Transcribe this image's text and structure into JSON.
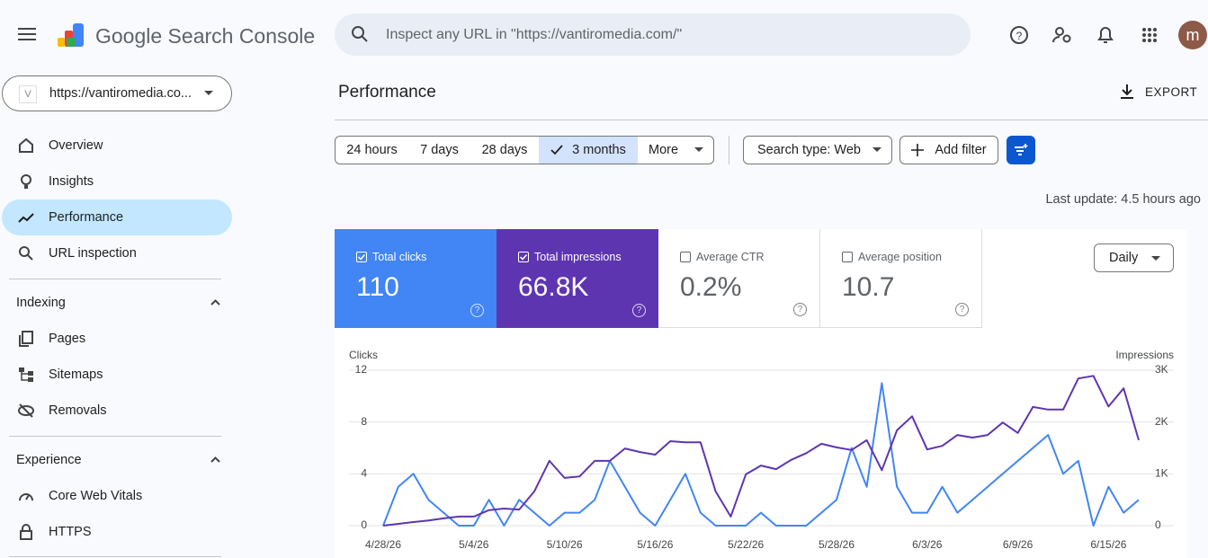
{
  "header": {
    "product": "Google Search Console",
    "search_placeholder": "Inspect any URL in \"https://vantiromedia.com/\"",
    "avatar": "m"
  },
  "property": "https://vantiromedia.co...",
  "nav": {
    "items": [
      "Overview",
      "Insights",
      "Performance",
      "URL inspection"
    ],
    "sections": [
      {
        "title": "Indexing",
        "items": [
          "Pages",
          "Sitemaps",
          "Removals"
        ]
      },
      {
        "title": "Experience",
        "items": [
          "Core Web Vitals",
          "HTTPS"
        ]
      }
    ]
  },
  "page": {
    "title": "Performance",
    "export": "EXPORT",
    "date_ranges": [
      "24 hours",
      "7 days",
      "28 days",
      "3 months"
    ],
    "more": "More",
    "search_type": "Search type: Web",
    "add_filter": "Add filter",
    "last_update": "Last update: 4.5 hours ago",
    "granularity": "Daily"
  },
  "metrics": [
    {
      "label": "Total clicks",
      "value": "110",
      "color": "#4285f4",
      "checked": true
    },
    {
      "label": "Total impressions",
      "value": "66.8K",
      "color": "#5e35b1",
      "checked": true
    },
    {
      "label": "Average CTR",
      "value": "0.2%",
      "checked": false
    },
    {
      "label": "Average position",
      "value": "10.7",
      "checked": false
    }
  ],
  "chart_data": {
    "type": "line",
    "y_label": "Clicks",
    "y2_label": "Impressions",
    "categories": [
      "4/28/26",
      null,
      null,
      null,
      null,
      null,
      "5/4/26",
      null,
      null,
      null,
      null,
      null,
      "5/10/26",
      null,
      null,
      null,
      null,
      null,
      "5/16/26",
      null,
      null,
      null,
      null,
      null,
      "5/22/26",
      null,
      null,
      null,
      null,
      null,
      "5/28/26",
      null,
      null,
      null,
      null,
      null,
      "6/3/26",
      null,
      null,
      null,
      null,
      null,
      "6/9/26",
      null,
      null,
      null,
      null,
      null,
      "6/15/26",
      null,
      null
    ],
    "series": [
      {
        "color": "#4285f4",
        "values": [
          0,
          3,
          4,
          2,
          1,
          0,
          0,
          2,
          0,
          2,
          1,
          0,
          1,
          1,
          2,
          5,
          3,
          1,
          0,
          2,
          4,
          1,
          0,
          0,
          0,
          1,
          0,
          0,
          0,
          1,
          2,
          6,
          3,
          11,
          3,
          1,
          1,
          3,
          1,
          2,
          3,
          4,
          5,
          6,
          7,
          4,
          5,
          0,
          3,
          1,
          2
        ]
      },
      {
        "color": "#5e35b1",
        "axis": "y2",
        "values": [
          0,
          35,
          70,
          100,
          140,
          175,
          175,
          300,
          330,
          310,
          660,
          1250,
          920,
          950,
          1250,
          1250,
          1490,
          1420,
          1370,
          1630,
          1610,
          1610,
          660,
          175,
          990,
          1160,
          1090,
          1270,
          1400,
          1580,
          1510,
          1460,
          1650,
          1070,
          1840,
          2110,
          1470,
          1540,
          1750,
          1700,
          1750,
          1990,
          1790,
          2290,
          2240,
          2240,
          2840,
          2890,
          2300,
          2650,
          1650
        ]
      }
    ],
    "ylim": [
      0,
      12
    ],
    "yticks": [
      0,
      4,
      8,
      12
    ],
    "y2lim": [
      0,
      3000
    ],
    "y2ticks": [
      0,
      {
        "value": 1000,
        "label": "1K"
      },
      {
        "value": 2000,
        "label": "2K"
      },
      {
        "value": 3000,
        "label": "3K"
      }
    ],
    "grid": true
  }
}
